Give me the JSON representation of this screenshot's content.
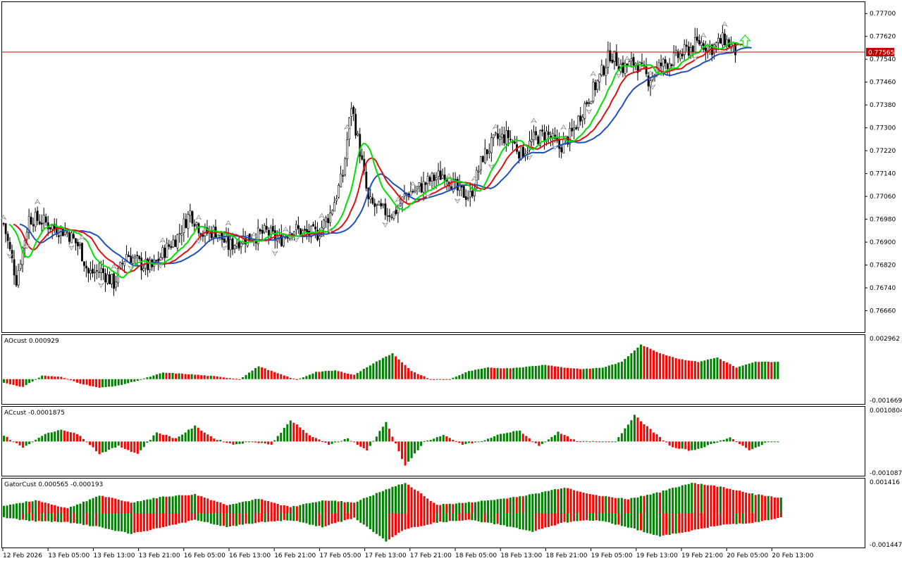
{
  "colors": {
    "bull": "#008000",
    "bear": "#ff0000",
    "jaw": "#1f4fbf",
    "teeth": "#e01010",
    "lips": "#00e000",
    "bid_line": "#d00000",
    "bid_box": "#c00000",
    "signal_arrow": "#3ddc3d",
    "fractal": "#8c8c8c"
  },
  "chart_data": [
    {
      "type": "candlestick",
      "pane": "main",
      "title": "",
      "ylim": [
        0.76585,
        0.7774
      ],
      "y_ticks": [
        "0.77700",
        "0.77620",
        "0.77540",
        "0.77460",
        "0.77380",
        "0.77300",
        "0.77220",
        "0.77140",
        "0.77060",
        "0.76980",
        "0.76900",
        "0.76820",
        "0.76740",
        "0.76660"
      ],
      "x_ticks": [
        "12 Feb 2026",
        "13 Feb 05:00",
        "13 Feb 13:00",
        "13 Feb 21:00",
        "16 Feb 05:00",
        "16 Feb 13:00",
        "16 Feb 21:00",
        "17 Feb 05:00",
        "17 Feb 13:00",
        "17 Feb 21:00",
        "18 Feb 05:00",
        "18 Feb 13:00",
        "18 Feb 21:00",
        "19 Feb 05:00",
        "19 Feb 13:00",
        "19 Feb 21:00",
        "20 Feb 05:00",
        "20 Feb 13:00"
      ],
      "bid_price": "0.77565",
      "bid_value": 0.77565,
      "anchors": [
        [
          0,
          0.76965
        ],
        [
          6,
          0.7677
        ],
        [
          12,
          0.76985
        ],
        [
          18,
          0.76975
        ],
        [
          24,
          0.7695
        ],
        [
          30,
          0.76935
        ],
        [
          36,
          0.7688
        ],
        [
          40,
          0.7679
        ],
        [
          46,
          0.768
        ],
        [
          52,
          0.76755
        ],
        [
          58,
          0.7686
        ],
        [
          64,
          0.76825
        ],
        [
          70,
          0.7681
        ],
        [
          76,
          0.7687
        ],
        [
          82,
          0.7692
        ],
        [
          88,
          0.77005
        ],
        [
          94,
          0.7693
        ],
        [
          100,
          0.7694
        ],
        [
          106,
          0.76885
        ],
        [
          112,
          0.7691
        ],
        [
          118,
          0.7692
        ],
        [
          124,
          0.76935
        ],
        [
          130,
          0.76905
        ],
        [
          136,
          0.7695
        ],
        [
          142,
          0.7693
        ],
        [
          148,
          0.7693
        ],
        [
          154,
          0.77
        ],
        [
          160,
          0.77135
        ],
        [
          164,
          0.7738
        ],
        [
          168,
          0.7722
        ],
        [
          172,
          0.7704
        ],
        [
          178,
          0.7701
        ],
        [
          184,
          0.77
        ],
        [
          190,
          0.7707
        ],
        [
          196,
          0.7709
        ],
        [
          202,
          0.7712
        ],
        [
          208,
          0.7714
        ],
        [
          214,
          0.7708
        ],
        [
          220,
          0.7706
        ],
        [
          226,
          0.772
        ],
        [
          232,
          0.7726
        ],
        [
          238,
          0.7727
        ],
        [
          244,
          0.7721
        ],
        [
          250,
          0.7726
        ],
        [
          256,
          0.7728
        ],
        [
          262,
          0.7723
        ],
        [
          268,
          0.7728
        ],
        [
          274,
          0.7738
        ],
        [
          280,
          0.7746
        ],
        [
          286,
          0.7756
        ],
        [
          292,
          0.7751
        ],
        [
          298,
          0.7753
        ],
        [
          304,
          0.7747
        ],
        [
          310,
          0.7752
        ],
        [
          316,
          0.7754
        ],
        [
          322,
          0.7757
        ],
        [
          328,
          0.776
        ],
        [
          334,
          0.7758
        ],
        [
          340,
          0.7761
        ],
        [
          346,
          0.7756
        ]
      ],
      "fractal_up_bars": [
        0,
        16,
        37,
        52,
        75,
        92,
        106,
        118,
        133,
        150,
        162,
        186,
        193,
        210,
        222,
        232,
        250,
        264,
        278,
        294,
        305,
        330,
        340
      ],
      "fractal_down_bars": [
        3,
        11,
        32,
        46,
        60,
        74,
        92,
        104,
        128,
        138,
        154,
        180,
        200,
        214,
        230,
        248,
        260,
        276,
        290,
        306,
        326
      ],
      "signal_arrow_bar": 348,
      "indicators": [
        {
          "name": "Jaw",
          "role": "smma13"
        },
        {
          "name": "Teeth",
          "role": "smma8"
        },
        {
          "name": "Lips",
          "role": "smma5"
        }
      ]
    },
    {
      "type": "histogram",
      "pane": "sub1",
      "label": "AOcust 0.000929",
      "max_label": "0.002962",
      "min_label": "-0.001669",
      "ylim": [
        -0.001669,
        0.002962
      ],
      "anchors": [
        [
          0,
          -0.00025
        ],
        [
          6,
          -0.00055
        ],
        [
          12,
          0.00025
        ],
        [
          18,
          0.00015
        ],
        [
          24,
          -0.0003
        ],
        [
          30,
          -0.0006
        ],
        [
          36,
          -0.00045
        ],
        [
          42,
          -0.0001
        ],
        [
          50,
          0.00045
        ],
        [
          58,
          0.00035
        ],
        [
          66,
          0.0002
        ],
        [
          74,
          0.0
        ],
        [
          80,
          0.0009
        ],
        [
          86,
          0.0004
        ],
        [
          92,
          -5e-05
        ],
        [
          98,
          0.0005
        ],
        [
          104,
          0.0006
        ],
        [
          110,
          0.0003
        ],
        [
          116,
          0.0011
        ],
        [
          122,
          0.0018
        ],
        [
          128,
          0.00055
        ],
        [
          134,
          0.0
        ],
        [
          140,
          0.0
        ],
        [
          146,
          0.00055
        ],
        [
          152,
          0.0008
        ],
        [
          158,
          0.00075
        ],
        [
          164,
          0.00085
        ],
        [
          170,
          0.001
        ],
        [
          176,
          0.0008
        ],
        [
          182,
          0.0007
        ],
        [
          188,
          0.0008
        ],
        [
          194,
          0.0012
        ],
        [
          200,
          0.0024
        ],
        [
          206,
          0.0018
        ],
        [
          212,
          0.0014
        ],
        [
          218,
          0.0012
        ],
        [
          224,
          0.0015
        ],
        [
          230,
          0.0008
        ],
        [
          236,
          0.0012
        ]
      ]
    },
    {
      "type": "histogram",
      "pane": "sub2",
      "label": "ACcust -0.0001875",
      "max_label": "0.0010804",
      "min_label": "-0.0010872",
      "ylim": [
        -0.0010872,
        0.0010804
      ],
      "anchors": [
        [
          0,
          0.0002
        ],
        [
          6,
          -0.0002
        ],
        [
          12,
          0.0002
        ],
        [
          18,
          0.0004
        ],
        [
          24,
          0.0002
        ],
        [
          30,
          -0.0004
        ],
        [
          36,
          -0.00015
        ],
        [
          42,
          -0.0004
        ],
        [
          48,
          0.0003
        ],
        [
          54,
          0.0001
        ],
        [
          60,
          0.0005
        ],
        [
          66,
          0.0001
        ],
        [
          72,
          -0.0001
        ],
        [
          78,
          0.0
        ],
        [
          84,
          -0.0001
        ],
        [
          90,
          0.0007
        ],
        [
          96,
          0.0002
        ],
        [
          102,
          -0.0001
        ],
        [
          108,
          0.0001
        ],
        [
          114,
          -0.0003
        ],
        [
          120,
          0.00065
        ],
        [
          126,
          -0.0008
        ],
        [
          132,
          0.0
        ],
        [
          138,
          0.0002
        ],
        [
          144,
          -0.0001
        ],
        [
          150,
          0.0
        ],
        [
          156,
          0.00025
        ],
        [
          162,
          0.00035
        ],
        [
          168,
          -0.00015
        ],
        [
          174,
          0.0003
        ],
        [
          180,
          0.0
        ],
        [
          186,
          0.0
        ],
        [
          192,
          0.0
        ],
        [
          198,
          0.00085
        ],
        [
          204,
          0.0003
        ],
        [
          210,
          -0.0002
        ],
        [
          216,
          -0.0003
        ],
        [
          222,
          -0.0001
        ],
        [
          228,
          0.00015
        ],
        [
          234,
          -0.0003
        ],
        [
          240,
          0.0
        ]
      ]
    },
    {
      "type": "histogram",
      "pane": "sub3",
      "label": "GatorCust 0.000565 -0.000193",
      "max_label": "0.001416",
      "min_label": "-0.001447",
      "ylim": [
        -0.001447,
        0.001416
      ],
      "upper_anchors": [
        [
          0,
          0.0003
        ],
        [
          10,
          0.00055
        ],
        [
          20,
          0.0002
        ],
        [
          30,
          0.00075
        ],
        [
          40,
          0.00045
        ],
        [
          50,
          0.0007
        ],
        [
          60,
          0.0008
        ],
        [
          70,
          0.00035
        ],
        [
          80,
          0.0006
        ],
        [
          90,
          0.00025
        ],
        [
          100,
          0.00055
        ],
        [
          110,
          0.00045
        ],
        [
          120,
          0.001
        ],
        [
          126,
          0.0013
        ],
        [
          136,
          0.00035
        ],
        [
          146,
          0.00045
        ],
        [
          156,
          0.0006
        ],
        [
          166,
          0.0008
        ],
        [
          176,
          0.0011
        ],
        [
          186,
          0.00075
        ],
        [
          196,
          0.0006
        ],
        [
          206,
          0.0009
        ],
        [
          216,
          0.0013
        ],
        [
          226,
          0.0011
        ],
        [
          236,
          0.0008
        ],
        [
          244,
          0.00065
        ]
      ],
      "lower_anchors": [
        [
          0,
          -0.0002
        ],
        [
          10,
          -0.00035
        ],
        [
          20,
          -0.0004
        ],
        [
          30,
          -0.0006
        ],
        [
          40,
          -0.0009
        ],
        [
          50,
          -0.0006
        ],
        [
          60,
          -0.0003
        ],
        [
          70,
          -0.0006
        ],
        [
          80,
          -0.0004
        ],
        [
          90,
          -0.0003
        ],
        [
          100,
          -0.0006
        ],
        [
          110,
          -0.0002
        ],
        [
          120,
          -0.0012
        ],
        [
          126,
          -0.0007
        ],
        [
          136,
          -0.0004
        ],
        [
          146,
          -0.0003
        ],
        [
          156,
          -0.0005
        ],
        [
          166,
          -0.0008
        ],
        [
          176,
          -0.0004
        ],
        [
          186,
          -0.0003
        ],
        [
          196,
          -0.0006
        ],
        [
          206,
          -0.001
        ],
        [
          216,
          -0.00075
        ],
        [
          226,
          -0.0005
        ],
        [
          236,
          -0.0004
        ],
        [
          244,
          -0.0002
        ]
      ]
    }
  ]
}
